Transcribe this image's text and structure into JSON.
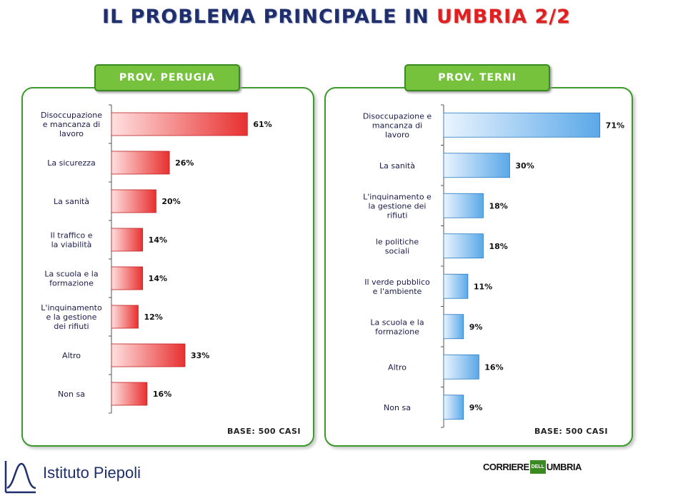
{
  "title": {
    "main": "IL PROBLEMA PRINCIPALE IN",
    "highlight": "UMBRIA 2/2"
  },
  "colors": {
    "perugia_bar": "#e83030",
    "terni_bar": "#5aa8e8",
    "frame": "#3a9a2a",
    "tab": "#76c23c",
    "title": "#1f2f6e"
  },
  "panels": [
    {
      "label": "PROV. PERUGIA",
      "base": "BASE:  500 CASI"
    },
    {
      "label": "PROV. TERNI",
      "base": "BASE:  500 CASI"
    }
  ],
  "chart_data": [
    {
      "type": "bar",
      "orientation": "horizontal",
      "title": "PROV. PERUGIA",
      "categories": [
        "Disoccupazione e mancanza di lavoro",
        "La sicurezza",
        "La sanità",
        "Il traffico e la viabilità",
        "La scuola e la formazione",
        "L'inquinamento e la gestione dei rifiuti",
        "Altro",
        "Non sa"
      ],
      "values": [
        61,
        26,
        20,
        14,
        14,
        12,
        33,
        16
      ],
      "value_labels": [
        "61%",
        "26%",
        "20%",
        "14%",
        "14%",
        "12%",
        "33%",
        "16%"
      ],
      "unit": "%",
      "xlim": [
        0,
        100
      ],
      "grid": false
    },
    {
      "type": "bar",
      "orientation": "horizontal",
      "title": "PROV. TERNI",
      "categories": [
        "Disoccupazione e mancanza di lavoro",
        "La sanità",
        "L'inquinamento e la gestione dei rifiuti",
        "le politiche sociali",
        "Il verde pubblico e l'ambiente",
        "La scuola e la formazione",
        "Altro",
        "Non sa"
      ],
      "values": [
        71,
        30,
        18,
        18,
        11,
        9,
        16,
        9
      ],
      "value_labels": [
        "71%",
        "30%",
        "18%",
        "18%",
        "11%",
        "9%",
        "16%",
        "9%"
      ],
      "unit": "%",
      "xlim": [
        0,
        100
      ],
      "grid": false
    }
  ],
  "footer": {
    "left_logo": "Istituto Piepoli",
    "right_logo": [
      "CORRIERE",
      "DELL",
      "UMBRIA"
    ]
  }
}
